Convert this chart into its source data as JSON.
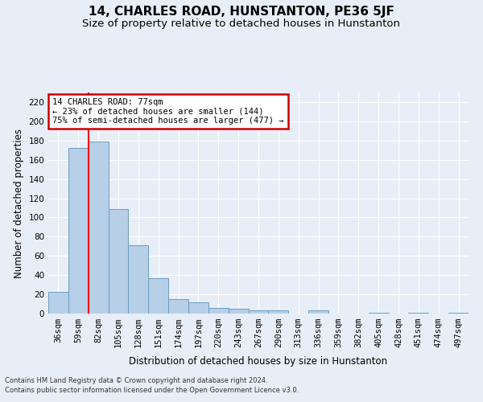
{
  "title": "14, CHARLES ROAD, HUNSTANTON, PE36 5JF",
  "subtitle": "Size of property relative to detached houses in Hunstanton",
  "xlabel": "Distribution of detached houses by size in Hunstanton",
  "ylabel": "Number of detached properties",
  "categories": [
    "36sqm",
    "59sqm",
    "82sqm",
    "105sqm",
    "128sqm",
    "151sqm",
    "174sqm",
    "197sqm",
    "220sqm",
    "243sqm",
    "267sqm",
    "290sqm",
    "313sqm",
    "336sqm",
    "359sqm",
    "382sqm",
    "405sqm",
    "428sqm",
    "451sqm",
    "474sqm",
    "497sqm"
  ],
  "values": [
    23,
    172,
    179,
    109,
    71,
    37,
    15,
    12,
    6,
    5,
    3,
    3,
    0,
    3,
    0,
    0,
    1,
    0,
    1,
    0,
    1
  ],
  "bar_color": "#b8cfe8",
  "bar_edge_color": "#6b9dc2",
  "red_line_x": 1.5,
  "ylim": [
    0,
    230
  ],
  "yticks": [
    0,
    20,
    40,
    60,
    80,
    100,
    120,
    140,
    160,
    180,
    200,
    220
  ],
  "annotation_text": "14 CHARLES ROAD: 77sqm\n← 23% of detached houses are smaller (144)\n75% of semi-detached houses are larger (477) →",
  "annotation_box_color": "#ffffff",
  "annotation_box_edge_color": "#cc0000",
  "footer1": "Contains HM Land Registry data © Crown copyright and database right 2024.",
  "footer2": "Contains public sector information licensed under the Open Government Licence v3.0.",
  "background_color": "#e8eef8",
  "grid_color": "#ffffff",
  "title_fontsize": 11,
  "subtitle_fontsize": 9.5,
  "axis_label_fontsize": 8.5,
  "tick_fontsize": 7.5,
  "annotation_fontsize": 7.5,
  "footer_fontsize": 6
}
